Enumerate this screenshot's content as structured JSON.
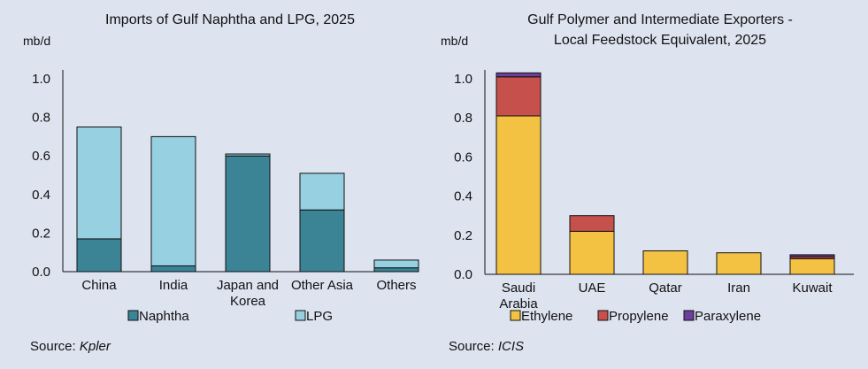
{
  "colors": {
    "background": "#dde3ef",
    "naphtha": "#3a8496",
    "lpg": "#96d0e1",
    "ethylene": "#f4c243",
    "propylene": "#c6504b",
    "paraxylene": "#6b3f9a"
  },
  "chart_data": [
    {
      "type": "bar",
      "stacked": true,
      "title": "Imports of Gulf Naphtha and LPG, 2025",
      "ylabel": "mb/d",
      "ylim": [
        0,
        1.0
      ],
      "yticks": [
        "0.0",
        "0.2",
        "0.4",
        "0.6",
        "0.8",
        "1.0"
      ],
      "grid": false,
      "legend_position": "bottom",
      "categories": [
        [
          "China"
        ],
        [
          "India"
        ],
        [
          "Japan and",
          "Korea"
        ],
        [
          "Other Asia"
        ],
        [
          "Others"
        ]
      ],
      "series": [
        {
          "name": "Naphtha",
          "values": [
            0.17,
            0.03,
            0.6,
            0.32,
            0.02
          ]
        },
        {
          "name": "LPG",
          "values": [
            0.58,
            0.67,
            0.01,
            0.19,
            0.04
          ]
        }
      ],
      "source_label": "Source:",
      "source_name": "Kpler"
    },
    {
      "type": "bar",
      "stacked": true,
      "title": [
        "Gulf Polymer and Intermediate Exporters -",
        "Local Feedstock Equivalent, 2025"
      ],
      "ylabel": "mb/d",
      "ylim": [
        0,
        1.0
      ],
      "yticks": [
        "0.0",
        "0.2",
        "0.4",
        "0.6",
        "0.8",
        "1.0"
      ],
      "grid": false,
      "legend_position": "bottom",
      "categories": [
        [
          "Saudi",
          "Arabia"
        ],
        [
          "UAE"
        ],
        [
          "Qatar"
        ],
        [
          "Iran"
        ],
        [
          "Kuwait"
        ]
      ],
      "series": [
        {
          "name": "Ethylene",
          "values": [
            0.81,
            0.22,
            0.12,
            0.11,
            0.08
          ]
        },
        {
          "name": "Propylene",
          "values": [
            0.2,
            0.08,
            0.0,
            0.0,
            0.01
          ]
        },
        {
          "name": "Paraxylene",
          "values": [
            0.02,
            0.0,
            0.0,
            0.0,
            0.01
          ]
        }
      ],
      "source_label": "Source:",
      "source_name": "ICIS"
    }
  ]
}
